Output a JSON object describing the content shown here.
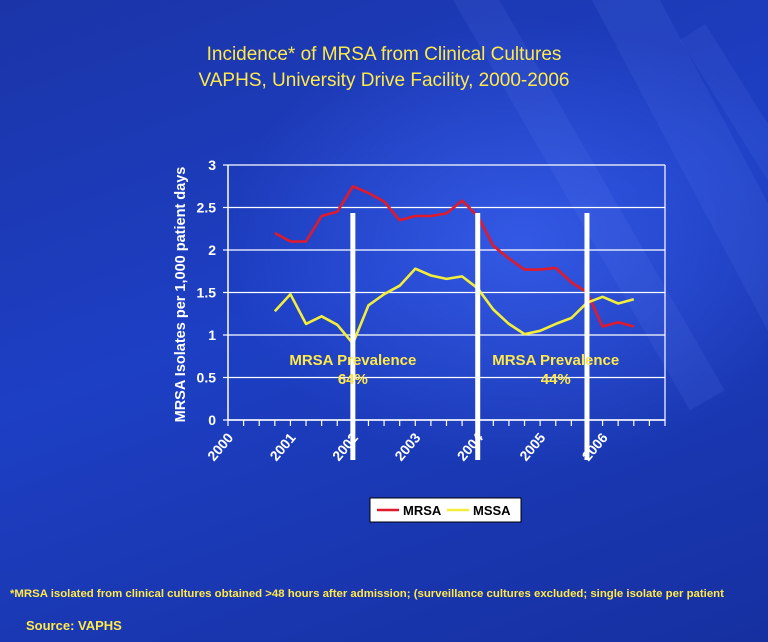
{
  "title_lines": [
    "Incidence* of MRSA from Clinical Cultures",
    "VAPHS, University Drive Facility, 2000-2006"
  ],
  "footnote": "*MRSA isolated from clinical cultures obtained >48 hours after admission; (surveillance cultures excluded; single isolate per patient",
  "source": "Source: VAPHS",
  "colors": {
    "mrsa": "#e0192b",
    "mssa": "#f2ee3a",
    "text_yellow": "#ffe94a",
    "background": "#1a36b0"
  },
  "chart_data": {
    "type": "line",
    "ylabel": "MRSA Isolates per 1,000 patient days",
    "xlabel": "",
    "ylim": [
      0,
      3
    ],
    "yticks": [
      "0",
      "0.5",
      "1",
      "1.5",
      "2",
      "2.5",
      "3"
    ],
    "xticks": [
      "2000",
      "2001",
      "2002",
      "2003",
      "2004",
      "2005",
      "2006"
    ],
    "grid": true,
    "legend_position": "bottom",
    "series": [
      {
        "name": "MRSA",
        "x": [
          2000.75,
          2001.0,
          2001.25,
          2001.5,
          2001.75,
          2002.0,
          2002.25,
          2002.5,
          2002.75,
          2003.0,
          2003.25,
          2003.5,
          2003.75,
          2004.0,
          2004.25,
          2004.5,
          2004.75,
          2005.0,
          2005.25,
          2005.5,
          2005.75,
          2006.0,
          2006.25,
          2006.5
        ],
        "values": [
          2.2,
          2.1,
          2.1,
          2.4,
          2.45,
          2.75,
          2.67,
          2.57,
          2.35,
          2.4,
          2.4,
          2.43,
          2.58,
          2.4,
          2.05,
          1.9,
          1.77,
          1.77,
          1.79,
          1.62,
          1.5,
          1.1,
          1.15,
          1.1
        ]
      },
      {
        "name": "MSSA",
        "x": [
          2000.75,
          2001.0,
          2001.25,
          2001.5,
          2001.75,
          2002.0,
          2002.25,
          2002.5,
          2002.75,
          2003.0,
          2003.25,
          2003.5,
          2003.75,
          2004.0,
          2004.25,
          2004.5,
          2004.75,
          2005.0,
          2005.25,
          2005.5,
          2005.75,
          2006.0,
          2006.25,
          2006.5
        ],
        "values": [
          1.28,
          1.48,
          1.13,
          1.22,
          1.12,
          0.9,
          1.35,
          1.48,
          1.58,
          1.78,
          1.7,
          1.66,
          1.69,
          1.55,
          1.3,
          1.13,
          1.01,
          1.05,
          1.13,
          1.2,
          1.38,
          1.45,
          1.37,
          1.42
        ]
      }
    ],
    "markers": [
      2002.0,
      2004.0,
      2005.75
    ],
    "annotations": [
      {
        "lines": [
          "MRSA Prevalence",
          "64%"
        ],
        "x": 2002.0,
        "y": 0.65
      },
      {
        "lines": [
          "MRSA Prevalence",
          "44%"
        ],
        "x": 2005.25,
        "y": 0.65
      }
    ]
  }
}
